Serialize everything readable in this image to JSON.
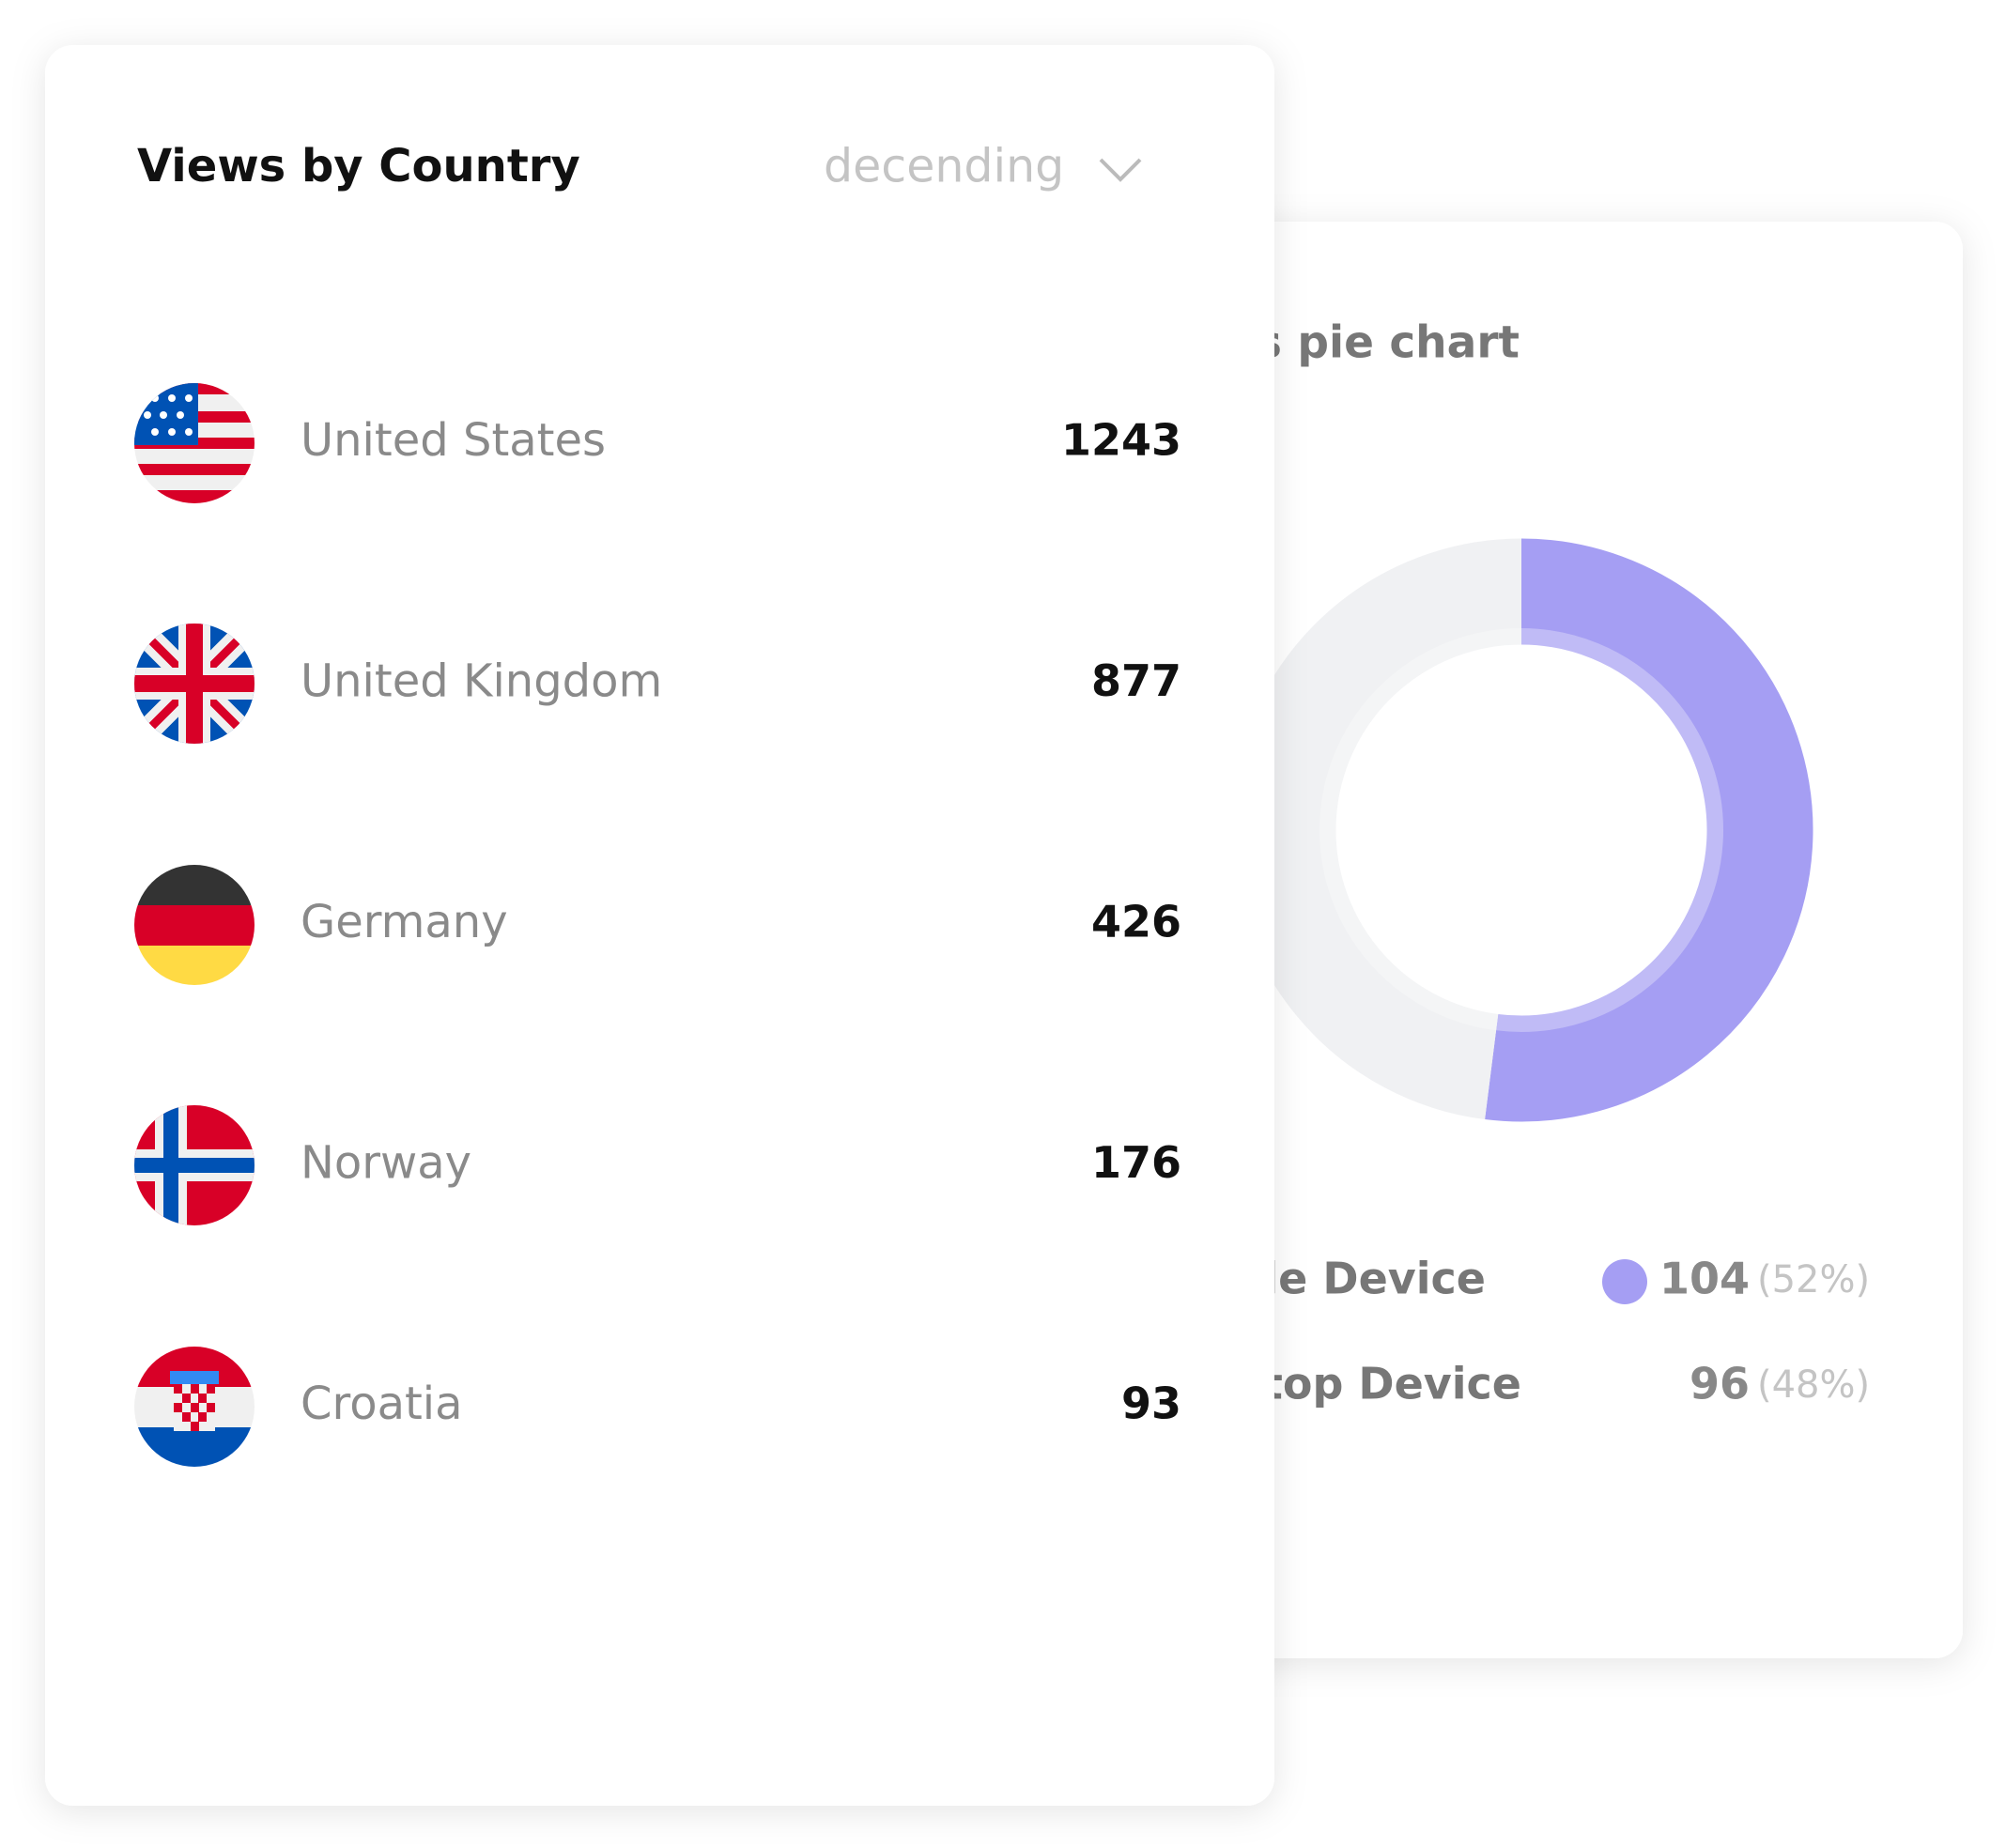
{
  "country_card": {
    "title": "Views by Country",
    "sort": "decending",
    "rows": [
      {
        "country": "United States",
        "views": 1243
      },
      {
        "country": "United Kingdom",
        "views": 877
      },
      {
        "country": "Germany",
        "views": 426
      },
      {
        "country": "Norway",
        "views": 176
      },
      {
        "country": "Croatia",
        "views": 93
      }
    ]
  },
  "device_card": {
    "title": "Views pie chart",
    "items": [
      {
        "label": "Mobile Device",
        "value": 104,
        "percent": 52,
        "percent_label": "(52%)",
        "color": "#a59ef3"
      },
      {
        "label": "Desktop Device",
        "value": 96,
        "percent": 48,
        "percent_label": "(48%)",
        "color": "#f0f1f3"
      }
    ]
  }
}
